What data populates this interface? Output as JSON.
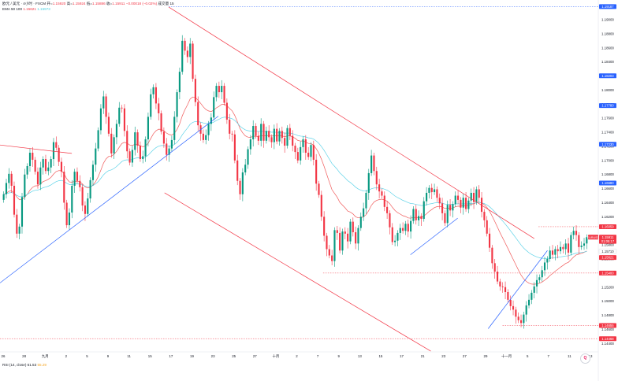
{
  "header": {
    "symbol_line": "欧元 / 美元 · 4小时 · FXCM",
    "open_label": "开=",
    "open_value": "1.15920",
    "high_label": "高=",
    "high_value": "1.15924",
    "low_label": "低=",
    "low_value": "1.15886",
    "close_label": "收=",
    "close_value": "1.15911",
    "change": "−0.00018 (−0.02%)",
    "volume_label": "成交量 15",
    "ema_label": "EMA 50 100",
    "ema50_value": "1.15621",
    "ema100_value": "1.15973"
  },
  "rsi": {
    "label": "RSI (14, close)",
    "value1": "61.53",
    "value2": "55.29"
  },
  "logo_text": "Q",
  "colors": {
    "up": "#089981",
    "down": "#f23645",
    "ema50": "#f05a5a",
    "ema100": "#5fd3e8",
    "trend_blue": "#2962ff",
    "channel_red": "#f23645",
    "level_red": "#f23645",
    "level_blue": "#2962ff"
  },
  "chart_data": {
    "type": "candlestick",
    "symbol": "EURUSD",
    "timeframe": "4H",
    "y_ticks": [
      "1.19200",
      "1.19000",
      "1.18800",
      "1.18600",
      "1.18400",
      "1.18200",
      "1.18000",
      "1.17800",
      "1.17600",
      "1.17400",
      "1.17200",
      "1.17000",
      "1.16800",
      "1.16600",
      "1.16400",
      "1.16200",
      "1.15800",
      "1.15600",
      "1.15400",
      "1.15200",
      "1.15000",
      "1.14800",
      "1.14600",
      "1.14400"
    ],
    "ylim": [
      1.1428,
      1.1928
    ],
    "x_ticks": [
      "26",
      "28",
      "九月",
      "2",
      "5",
      "9",
      "11",
      "15",
      "17",
      "19",
      "23",
      "25",
      "27",
      "十月",
      "2",
      "7",
      "9",
      "13",
      "15",
      "17",
      "21",
      "23",
      "27",
      "29",
      "十一月",
      "5",
      "7",
      "11",
      "13"
    ],
    "price_labels": [
      {
        "text": "1.19187",
        "value": 1.19187,
        "color": "#2962ff"
      },
      {
        "text": "1.18203",
        "value": 1.18203,
        "color": "#2962ff"
      },
      {
        "text": "1.17780",
        "value": 1.1778,
        "color": "#2962ff"
      },
      {
        "text": "1.17230",
        "value": 1.1723,
        "color": "#2962ff"
      },
      {
        "text": "1.16680",
        "value": 1.1668,
        "color": "#2962ff"
      },
      {
        "text": "1.16059",
        "value": 1.16059,
        "color": "#f23645"
      },
      {
        "text": "EURUSD",
        "value": 1.15911,
        "color": "#f23645"
      },
      {
        "text": "1.15911",
        "value": 1.15911,
        "color": "#f23645"
      },
      {
        "text": "01:05:17",
        "value": 1.1585,
        "color": "#f23645"
      },
      {
        "text": "1.15710",
        "value": 1.1571,
        "color": "#ffffff"
      },
      {
        "text": "1.15621",
        "value": 1.15621,
        "color": "#f23645"
      },
      {
        "text": "1.15400",
        "value": 1.154,
        "color": "#f23645"
      },
      {
        "text": "1.14655",
        "value": 1.14655,
        "color": "#f23645"
      },
      {
        "text": "1.14468",
        "value": 1.14468,
        "color": "#f23645"
      }
    ],
    "levels": [
      {
        "value": 1.19187,
        "color": "#2962ff",
        "from": 0.282
      },
      {
        "value": 1.154,
        "color": "#f23645",
        "from": 0.54
      },
      {
        "value": 1.16059,
        "color": "#f23645",
        "from": 0.9
      },
      {
        "value": 1.14655,
        "color": "#f23645",
        "from": 0.84
      },
      {
        "value": 1.14468,
        "color": "#f23645",
        "from": 0.0
      }
    ],
    "closes": [
      1.1652,
      1.1668,
      1.1681,
      1.1664,
      1.1623,
      1.1596,
      1.1606,
      1.1648,
      1.168,
      1.1692,
      1.1711,
      1.1701,
      1.1684,
      1.1666,
      1.169,
      1.1702,
      1.1685,
      1.169,
      1.1702,
      1.1726,
      1.1718,
      1.1698,
      1.1684,
      1.164,
      1.1608,
      1.1626,
      1.1664,
      1.1684,
      1.1671,
      1.1662,
      1.1636,
      1.1624,
      1.1646,
      1.1672,
      1.1694,
      1.1717,
      1.1743,
      1.1774,
      1.1791,
      1.1762,
      1.1738,
      1.171,
      1.1733,
      1.1752,
      1.1775,
      1.1774,
      1.1742,
      1.1713,
      1.1697,
      1.1715,
      1.174,
      1.1721,
      1.1702,
      1.1706,
      1.173,
      1.1762,
      1.1794,
      1.1804,
      1.1781,
      1.1767,
      1.1741,
      1.1724,
      1.1708,
      1.1717,
      1.1729,
      1.1762,
      1.1797,
      1.1826,
      1.187,
      1.1856,
      1.1847,
      1.1866,
      1.1816,
      1.1783,
      1.175,
      1.1738,
      1.1729,
      1.1736,
      1.1752,
      1.1761,
      1.179,
      1.1806,
      1.1797,
      1.1806,
      1.1782,
      1.1758,
      1.1738,
      1.1737,
      1.17,
      1.1671,
      1.1652,
      1.1683,
      1.1694,
      1.1716,
      1.173,
      1.1749,
      1.1735,
      1.1728,
      1.1752,
      1.1728,
      1.1742,
      1.1733,
      1.1726,
      1.1745,
      1.1727,
      1.1742,
      1.1732,
      1.1721,
      1.1746,
      1.1735,
      1.1721,
      1.1712,
      1.17,
      1.1719,
      1.173,
      1.1711,
      1.1705,
      1.1722,
      1.1701,
      1.1667,
      1.1651,
      1.162,
      1.1593,
      1.1574,
      1.1565,
      1.1557,
      1.1601,
      1.1597,
      1.1572,
      1.1599,
      1.1596,
      1.1585,
      1.1613,
      1.1598,
      1.1582,
      1.1604,
      1.162,
      1.1632,
      1.1654,
      1.1682,
      1.1707,
      1.1685,
      1.1666,
      1.1656,
      1.165,
      1.1634,
      1.1625,
      1.1605,
      1.1584,
      1.1586,
      1.1597,
      1.1604,
      1.16,
      1.161,
      1.1599,
      1.1614,
      1.1631,
      1.1615,
      1.1621,
      1.1617,
      1.1642,
      1.1654,
      1.1661,
      1.1655,
      1.1659,
      1.1647,
      1.1639,
      1.1625,
      1.1611,
      1.1637,
      1.1629,
      1.1638,
      1.165,
      1.1644,
      1.1633,
      1.1647,
      1.1631,
      1.1643,
      1.1654,
      1.1641,
      1.1659,
      1.1647,
      1.1627,
      1.1615,
      1.1596,
      1.1576,
      1.1554,
      1.1542,
      1.1528,
      1.1521,
      1.152,
      1.1513,
      1.1502,
      1.1493,
      1.1488,
      1.1478,
      1.1473,
      1.1469,
      1.1481,
      1.1494,
      1.1502,
      1.1512,
      1.1521,
      1.153,
      1.1534,
      1.1544,
      1.1555,
      1.156,
      1.1572,
      1.1566,
      1.1574,
      1.1571,
      1.1577,
      1.1574,
      1.1582,
      1.1569,
      1.1594,
      1.16,
      1.1594,
      1.1577,
      1.1579,
      1.1582,
      1.1591
    ],
    "trendlines": [
      {
        "color": "#2962ff",
        "x1": 0.0,
        "y1": 1.1526,
        "x2": 0.365,
        "y2": 1.1763
      },
      {
        "color": "#f23645",
        "x1": 0.282,
        "y1": 1.1918,
        "x2": 0.893,
        "y2": 1.1589
      },
      {
        "color": "#f23645",
        "x1": 0.275,
        "y1": 1.1654,
        "x2": 0.72,
        "y2": 1.1429
      },
      {
        "color": "#f23645",
        "x1": 0.0,
        "y1": 1.1722,
        "x2": 0.12,
        "y2": 1.171
      },
      {
        "color": "#2962ff",
        "x1": 0.686,
        "y1": 1.1566,
        "x2": 0.765,
        "y2": 1.1618
      },
      {
        "color": "#2962ff",
        "x1": 0.816,
        "y1": 1.1461,
        "x2": 0.915,
        "y2": 1.1572
      }
    ]
  }
}
